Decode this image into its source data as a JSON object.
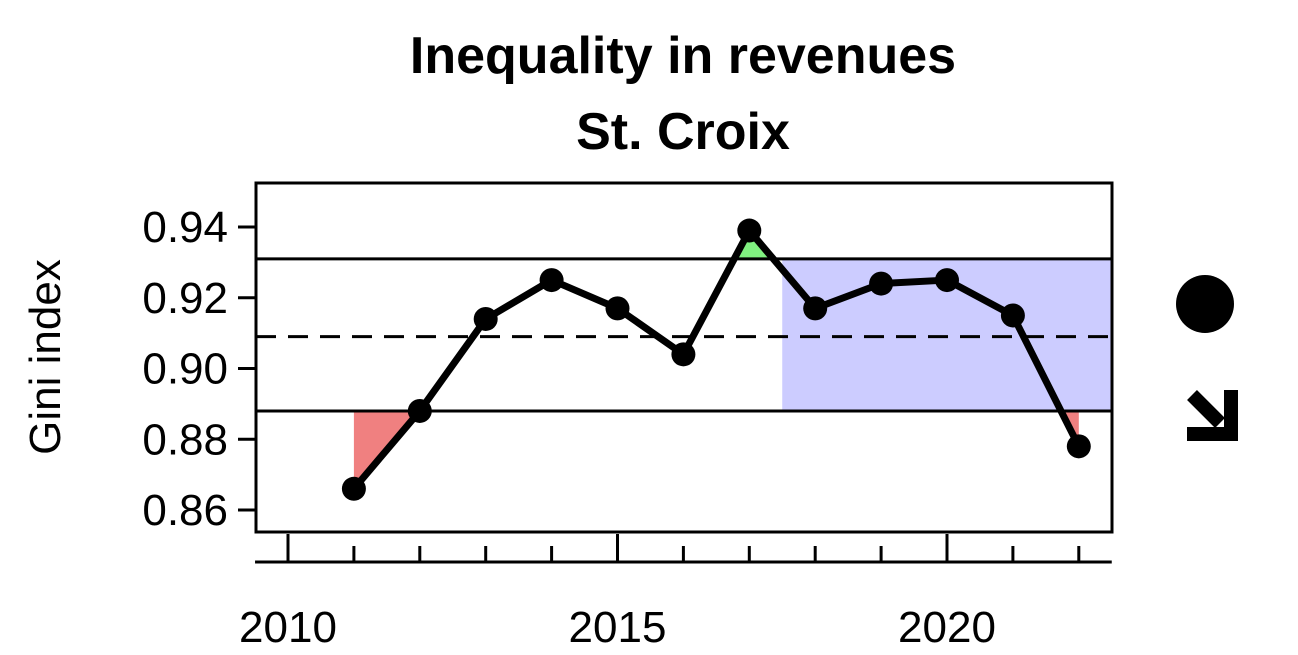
{
  "title": "Inequality in revenues",
  "subtitle": "St. Croix",
  "chart_data": {
    "type": "line",
    "title": "Inequality in revenues",
    "subtitle": "St. Croix",
    "xlabel": "",
    "ylabel": "Gini index",
    "xlim": [
      2009.5,
      2022.5
    ],
    "ylim": [
      0.855,
      0.952
    ],
    "x_major_ticks": [
      2010,
      2015,
      2020
    ],
    "x_minor_ticks": [
      2011,
      2012,
      2013,
      2014,
      2016,
      2017,
      2018,
      2019,
      2021,
      2022
    ],
    "y_ticks": [
      0.86,
      0.88,
      0.9,
      0.92,
      0.94
    ],
    "y_tick_labels": [
      "0.86",
      "0.88",
      "0.90",
      "0.92",
      "0.94"
    ],
    "x": [
      2011,
      2012,
      2013,
      2014,
      2015,
      2016,
      2017,
      2018,
      2019,
      2020,
      2021,
      2022
    ],
    "y": [
      0.866,
      0.888,
      0.914,
      0.925,
      0.917,
      0.904,
      0.939,
      0.917,
      0.924,
      0.925,
      0.915,
      0.878
    ],
    "mean": 0.909,
    "upper_bound": 0.931,
    "lower_bound": 0.888,
    "recent_period": [
      2017.5,
      2022.5
    ],
    "colors": {
      "line": "#000000",
      "above_fill": "#80f080",
      "below_fill": "#f08080",
      "recent_shade": "#ccccff"
    },
    "status_icons": [
      "filled-circle-icon",
      "arrow-down-right-icon"
    ]
  }
}
